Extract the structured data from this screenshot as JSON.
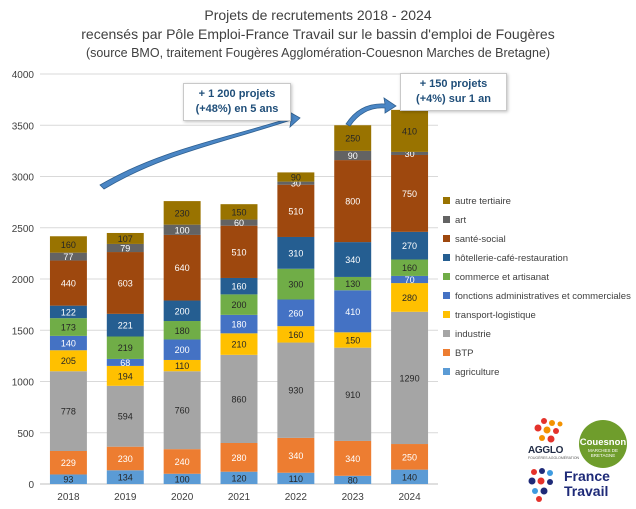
{
  "title": {
    "line1": "Projets de recrutements 2018 - 2024",
    "line2": "recensés par Pôle Emploi-France Travail sur le bassin d'emploi de Fougères",
    "line3": "(source BMO, traitement Fougères Agglomération-Couesnon Marches de Bretagne)"
  },
  "callouts": {
    "left_line1": "+ 1 200 projets",
    "left_line2": "(+48%) en 5 ans",
    "right_line1": "+ 150 projets",
    "right_line2": "(+4%) sur 1 an"
  },
  "logos": {
    "agglo_text": "AGGLO",
    "agglo_sub": "FOUGÈRES AGGLOMÉRATION",
    "couesnon_text": "Couesnon",
    "couesnon_sub": "MARCHES DE BRETAGNE",
    "ft_line1": "France",
    "ft_line2": "Travail"
  },
  "chart_data": {
    "type": "bar",
    "stacked": true,
    "categories": [
      "2018",
      "2019",
      "2020",
      "2021",
      "2022",
      "2023",
      "2024"
    ],
    "ylim": [
      0,
      4000
    ],
    "yticks": [
      0,
      500,
      1000,
      1500,
      2000,
      2500,
      3000,
      3500,
      4000
    ],
    "grid": true,
    "legend_position": "right",
    "series": [
      {
        "name": "agriculture",
        "color": "#5b9bd5",
        "labels": [
          "93",
          "134",
          "100",
          "120",
          "110",
          "80",
          "140"
        ],
        "values": [
          93,
          134,
          100,
          120,
          110,
          80,
          140
        ]
      },
      {
        "name": "BTP",
        "color": "#ed7d31",
        "labels": [
          "229",
          "230",
          "240",
          "280",
          "340",
          "340",
          "250"
        ],
        "values": [
          229,
          230,
          240,
          280,
          340,
          340,
          250
        ]
      },
      {
        "name": "industrie",
        "color": "#a5a5a5",
        "labels": [
          "778",
          "594",
          "760",
          "860",
          "930",
          "910",
          "1290"
        ],
        "values": [
          778,
          594,
          760,
          860,
          930,
          910,
          1290
        ]
      },
      {
        "name": "transport-logistique",
        "color": "#ffc000",
        "labels": [
          "205",
          "194",
          "110",
          "210",
          "160",
          "150",
          "280"
        ],
        "values": [
          205,
          194,
          110,
          210,
          160,
          150,
          280
        ]
      },
      {
        "name": "fonctions administratives et commerciales",
        "color": "#4472c4",
        "labels": [
          "140",
          "68",
          "200",
          "180",
          "260",
          "410",
          "70"
        ],
        "values": [
          140,
          68,
          200,
          180,
          260,
          410,
          70
        ]
      },
      {
        "name": "commerce et artisanat",
        "color": "#70ad47",
        "labels": [
          "173",
          "219",
          "180",
          "200",
          "300",
          "130",
          "160"
        ],
        "values": [
          173,
          219,
          180,
          200,
          300,
          130,
          160
        ]
      },
      {
        "name": "hôtellerie-café-restauration",
        "color": "#255e91",
        "labels": [
          "122",
          "221",
          "200",
          "160",
          "310",
          "340",
          "270"
        ],
        "values": [
          122,
          221,
          200,
          160,
          310,
          340,
          270
        ]
      },
      {
        "name": "santé-social",
        "color": "#9e480e",
        "labels": [
          "440",
          "603",
          "640",
          "510",
          "510",
          "800",
          "750"
        ],
        "values": [
          440,
          603,
          640,
          510,
          510,
          800,
          750
        ]
      },
      {
        "name": "art",
        "color": "#636363",
        "labels": [
          "77",
          "79",
          "100",
          "60",
          "30",
          "90",
          "30"
        ],
        "values": [
          77,
          79,
          100,
          60,
          30,
          90,
          30
        ]
      },
      {
        "name": "autre tertiaire",
        "color": "#997300",
        "labels": [
          "160",
          "107",
          "230",
          "150",
          "90",
          "250",
          "410"
        ],
        "values": [
          160,
          107,
          230,
          150,
          90,
          250,
          410
        ]
      }
    ]
  }
}
